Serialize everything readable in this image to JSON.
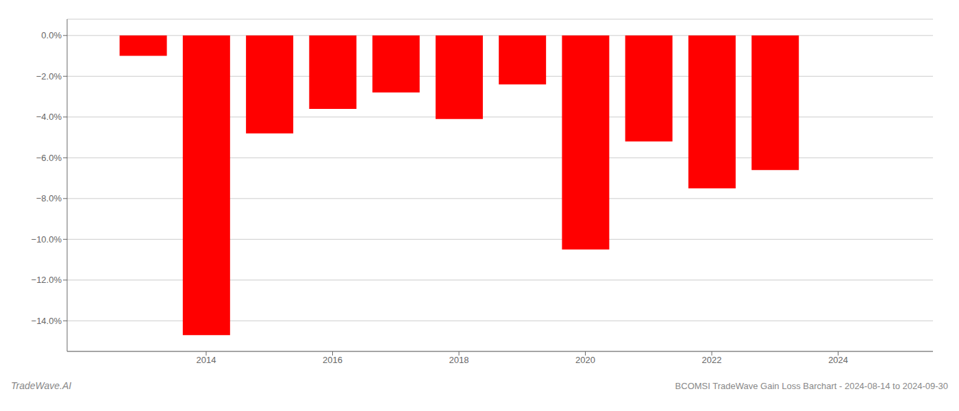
{
  "chart_data": {
    "type": "bar",
    "x": [
      2013,
      2014,
      2015,
      2016,
      2017,
      2018,
      2019,
      2020,
      2021,
      2022,
      2023
    ],
    "values": [
      -1.0,
      -14.7,
      -4.8,
      -3.6,
      -2.8,
      -4.1,
      -2.4,
      -10.5,
      -5.2,
      -7.5,
      -6.6
    ],
    "color": "#ff0000",
    "xlim": [
      2011.8,
      2025.5
    ],
    "xticks": [
      2014,
      2016,
      2018,
      2020,
      2022,
      2024
    ],
    "ylim": [
      -15.5,
      0.8
    ],
    "yticks": [
      {
        "value": 0.0,
        "label": "0.0%"
      },
      {
        "value": -2.0,
        "label": "−2.0%"
      },
      {
        "value": -4.0,
        "label": "−4.0%"
      },
      {
        "value": -6.0,
        "label": "−6.0%"
      },
      {
        "value": -8.0,
        "label": "−8.0%"
      },
      {
        "value": -10.0,
        "label": "−10.0%"
      },
      {
        "value": -12.0,
        "label": "−12.0%"
      },
      {
        "value": -14.0,
        "label": "−14.0%"
      }
    ],
    "grid": true,
    "annotations": [
      "TradeWave.AI",
      "BCOMSI TradeWave Gain Loss Barchart - 2024-08-14 to 2024-09-30"
    ]
  }
}
